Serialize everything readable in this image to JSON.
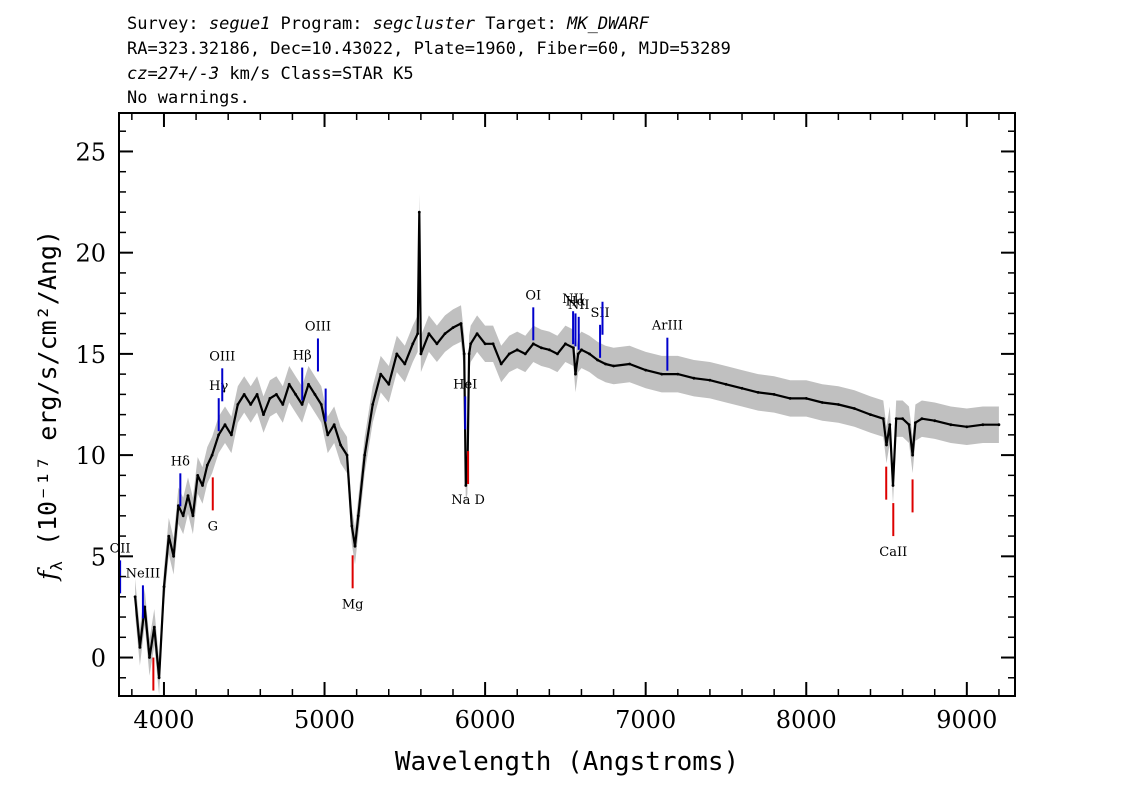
{
  "header": {
    "l1_a": "Survey: ",
    "l1_survey": "segue1",
    "l1_b": " Program: ",
    "l1_program": "segcluster",
    "l1_c": " Target: ",
    "l1_target": "MK_DWARF",
    "l2": "RA=323.32186, Dec=10.43022, Plate=1960, Fiber=60, MJD=53289",
    "l3_cz": "cz=27+/-3",
    "l3_rest": " km/s Class=STAR K5",
    "l4": "No warnings."
  },
  "chart_data": {
    "type": "line",
    "xlabel": "Wavelength (Angstroms)",
    "ylabel_sym": "f",
    "ylabel_sub": "λ",
    "ylabel_units": " (10⁻¹⁷ erg/s/cm²/Ang)",
    "xlim": [
      3720,
      9300
    ],
    "ylim": [
      -1.9,
      26.9
    ],
    "xticks": [
      4000,
      5000,
      6000,
      7000,
      8000,
      9000
    ],
    "yticks": [
      0,
      5,
      10,
      15,
      20,
      25
    ],
    "grid": false,
    "series": [
      {
        "role": "flux",
        "color": "#000000",
        "error_color": "#c0c0c0",
        "x": [
          3820,
          3850,
          3880,
          3910,
          3940,
          3970,
          4000,
          4030,
          4060,
          4090,
          4120,
          4150,
          4180,
          4210,
          4240,
          4270,
          4300,
          4340,
          4380,
          4420,
          4460,
          4500,
          4540,
          4580,
          4620,
          4660,
          4700,
          4740,
          4780,
          4820,
          4860,
          4900,
          4940,
          4980,
          5020,
          5060,
          5100,
          5140,
          5170,
          5190,
          5210,
          5250,
          5300,
          5350,
          5400,
          5450,
          5500,
          5550,
          5580,
          5590,
          5600,
          5650,
          5700,
          5750,
          5800,
          5850,
          5870,
          5880,
          5890,
          5900,
          5910,
          5950,
          6000,
          6050,
          6100,
          6150,
          6200,
          6250,
          6300,
          6350,
          6400,
          6450,
          6500,
          6550,
          6563,
          6580,
          6600,
          6650,
          6700,
          6750,
          6800,
          6900,
          7000,
          7100,
          7200,
          7300,
          7400,
          7500,
          7600,
          7700,
          7800,
          7900,
          8000,
          8100,
          8200,
          8300,
          8400,
          8480,
          8500,
          8520,
          8540,
          8560,
          8600,
          8640,
          8662,
          8680,
          8720,
          8800,
          8900,
          9000,
          9100,
          9200
        ],
        "y": [
          3.0,
          0.5,
          2.5,
          0.0,
          1.5,
          -1.0,
          3.5,
          6.0,
          5.0,
          7.5,
          7.0,
          8.0,
          7.0,
          9.0,
          8.5,
          9.5,
          10.0,
          11.0,
          11.5,
          11.0,
          12.5,
          13.0,
          12.5,
          13.0,
          12.0,
          12.8,
          13.0,
          12.5,
          13.5,
          13.0,
          12.5,
          13.5,
          13.0,
          12.5,
          11.0,
          11.5,
          10.5,
          10.0,
          6.5,
          5.5,
          7.0,
          10.0,
          12.5,
          14.0,
          13.5,
          15.0,
          14.5,
          15.5,
          16.0,
          22.0,
          15.0,
          16.0,
          15.5,
          16.0,
          16.3,
          16.5,
          15.0,
          8.5,
          9.0,
          15.0,
          15.5,
          16.0,
          15.5,
          15.5,
          14.5,
          15.0,
          15.2,
          15.0,
          15.5,
          15.3,
          15.2,
          15.0,
          15.5,
          15.3,
          14.0,
          15.0,
          15.2,
          15.0,
          14.7,
          14.5,
          14.4,
          14.5,
          14.2,
          14.0,
          14.0,
          13.8,
          13.7,
          13.5,
          13.3,
          13.1,
          13.0,
          12.8,
          12.8,
          12.6,
          12.5,
          12.3,
          12.0,
          11.8,
          10.5,
          11.5,
          8.5,
          11.8,
          11.8,
          11.5,
          10.0,
          11.6,
          11.8,
          11.7,
          11.5,
          11.4,
          11.5,
          11.5
        ]
      }
    ],
    "emission_lines": [
      {
        "label": "OII",
        "wave": 3727
      },
      {
        "label": "NeIII",
        "wave": 3869
      },
      {
        "label": "Hδ",
        "wave": 4102
      },
      {
        "label": "Hγ",
        "wave": 4341
      },
      {
        "label": "OIII",
        "wave": 4363
      },
      {
        "label": "Hβ",
        "wave": 4861
      },
      {
        "label": "OIII",
        "wave": 4959
      },
      {
        "label": "",
        "wave": 5007
      },
      {
        "label": "HeI",
        "wave": 5876
      },
      {
        "label": "OI",
        "wave": 6300
      },
      {
        "label": "NII",
        "wave": 6548
      },
      {
        "label": "Hα",
        "wave": 6563
      },
      {
        "label": "NII",
        "wave": 6583
      },
      {
        "label": "SII",
        "wave": 6716
      },
      {
        "label": "",
        "wave": 6731
      },
      {
        "label": "ArIII",
        "wave": 7135
      }
    ],
    "absorption_lines": [
      {
        "label": "",
        "wave": 3934
      },
      {
        "label": "",
        "wave": 3969
      },
      {
        "label": "G",
        "wave": 4304
      },
      {
        "label": "Mg",
        "wave": 5175
      },
      {
        "label": "Na D",
        "wave": 5894
      },
      {
        "label": "",
        "wave": 8498
      },
      {
        "label": "CaII",
        "wave": 8542
      },
      {
        "label": "",
        "wave": 8662
      }
    ],
    "colors": {
      "emission": "#0000cc",
      "absorption": "#dd0000",
      "axis": "#000000"
    }
  }
}
